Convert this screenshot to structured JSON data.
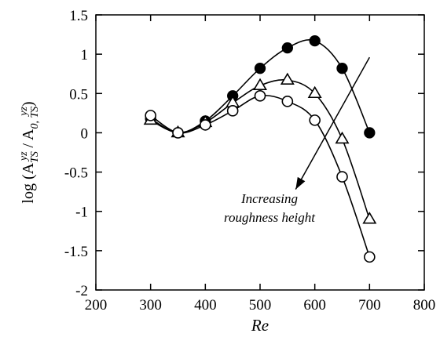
{
  "chart_data": {
    "type": "line",
    "title": "",
    "xlabel": "Re",
    "ylabel": {
      "prefix": "log (A",
      "sub1": "TS",
      "sup1": "yz",
      "mid": " / A",
      "sub2": "0, TS",
      "sup2": "yz",
      "suffix": ")"
    },
    "xlim": [
      200,
      800
    ],
    "ylim": [
      -2,
      1.5
    ],
    "xticks": [
      "200",
      "300",
      "400",
      "500",
      "600",
      "700",
      "800"
    ],
    "yticks": [
      "-2",
      "-1.5",
      "-1",
      "-0.5",
      "0",
      "0.5",
      "1",
      "1.5"
    ],
    "grid": false,
    "legend": "none",
    "x": [
      300,
      350,
      400,
      450,
      500,
      550,
      600,
      650,
      700
    ],
    "series": [
      {
        "marker": "filled-circle",
        "values": [
          0.18,
          0.0,
          0.15,
          0.47,
          0.82,
          1.08,
          1.17,
          0.82,
          0.0
        ]
      },
      {
        "marker": "open-triangle",
        "values": [
          0.16,
          0.0,
          0.13,
          0.38,
          0.6,
          0.67,
          0.5,
          -0.08,
          -1.1
        ]
      },
      {
        "marker": "open-circle",
        "values": [
          0.22,
          0.0,
          0.1,
          0.28,
          0.47,
          0.4,
          0.16,
          -0.56,
          -1.58
        ]
      }
    ],
    "annotation": {
      "lines": [
        "Increasing",
        "roughness height"
      ],
      "arrow_from": [
        700,
        0.96
      ],
      "arrow_to": [
        565,
        -0.72
      ]
    }
  }
}
